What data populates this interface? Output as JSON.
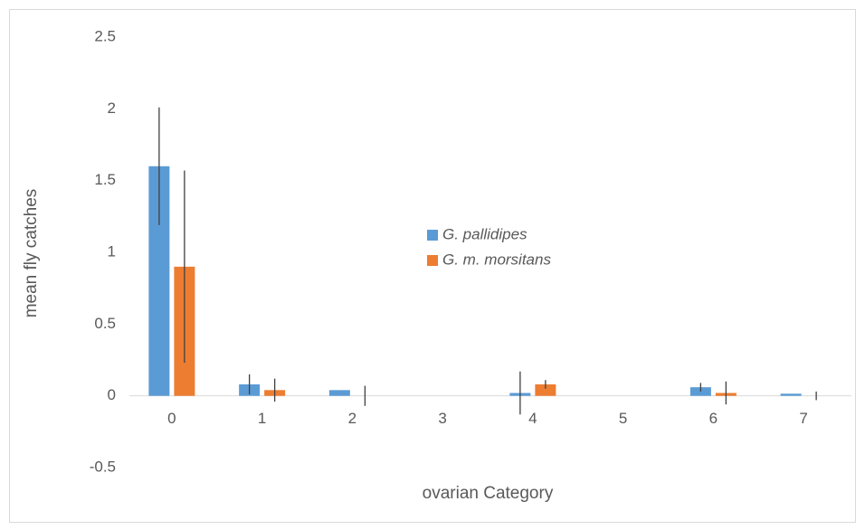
{
  "chart_data": {
    "type": "bar",
    "xlabel": "ovarian Category",
    "ylabel": "mean fly catches",
    "categories": [
      "0",
      "1",
      "2",
      "3",
      "4",
      "5",
      "6",
      "7"
    ],
    "series": [
      {
        "name": "G. pallidipes",
        "color": "#5b9bd5",
        "values": [
          1.6,
          0.08,
          0.04,
          0,
          0.02,
          0,
          0.06,
          0.015
        ],
        "errors": [
          0.41,
          0.07,
          0,
          0,
          0.15,
          0,
          0.03,
          0
        ]
      },
      {
        "name": "G. m. morsitans",
        "color": "#ed7d31",
        "values": [
          0.9,
          0.04,
          0,
          0,
          0.08,
          0,
          0.02,
          0
        ],
        "errors": [
          0.67,
          0.08,
          0.07,
          0,
          0.03,
          0,
          0.08,
          0.03
        ]
      }
    ],
    "ylim": [
      -0.5,
      2.5
    ],
    "yticks": [
      -0.5,
      0,
      0.5,
      1,
      1.5,
      2,
      2.5
    ],
    "legend": "center"
  }
}
